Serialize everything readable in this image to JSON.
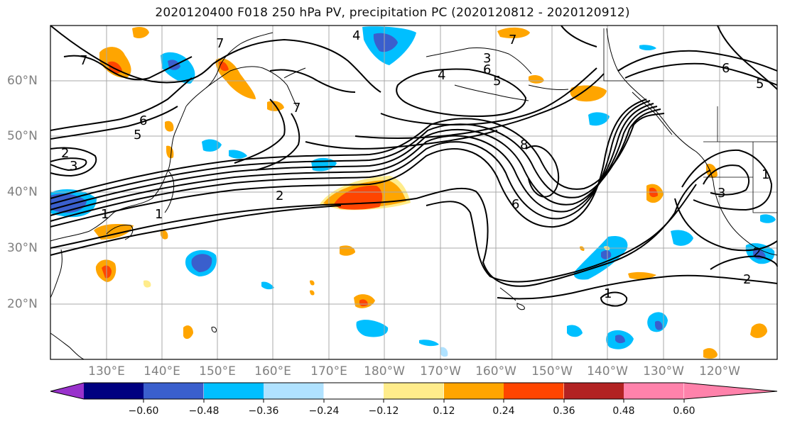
{
  "title": "2020120400 F018 250 hPa PV, precipitation PC (2020120812 - 2020120912)",
  "lat_labels": [
    "60°N",
    "50°N",
    "40°N",
    "30°N",
    "20°N"
  ],
  "lon_labels": [
    "130°E",
    "140°E",
    "150°E",
    "160°E",
    "170°E",
    "180°W",
    "170°W",
    "160°W",
    "150°W",
    "140°W",
    "130°W",
    "120°W"
  ],
  "contour_labels": [
    "7",
    "7",
    "7",
    "7",
    "6",
    "6",
    "5",
    "4",
    "4",
    "8",
    "6",
    "5",
    "3",
    "2",
    "3",
    "2",
    "1",
    "1",
    "2",
    "1",
    "6",
    "5",
    "3",
    "2",
    "1"
  ],
  "colorbar": {
    "ticks": [
      "−0.60",
      "−0.48",
      "−0.36",
      "−0.24",
      "−0.12",
      "0.12",
      "0.24",
      "0.36",
      "0.48",
      "0.60"
    ],
    "colors": [
      "#9932cc",
      "#000080",
      "#3a5fcd",
      "#00bfff",
      "#b0e2ff",
      "#ffffff",
      "#ffec8b",
      "#ffa500",
      "#ff4500",
      "#b22222",
      "#ff82ab"
    ]
  },
  "colors": {
    "positive_warm": "#ffa500",
    "negative_cool": "#00bfff"
  }
}
